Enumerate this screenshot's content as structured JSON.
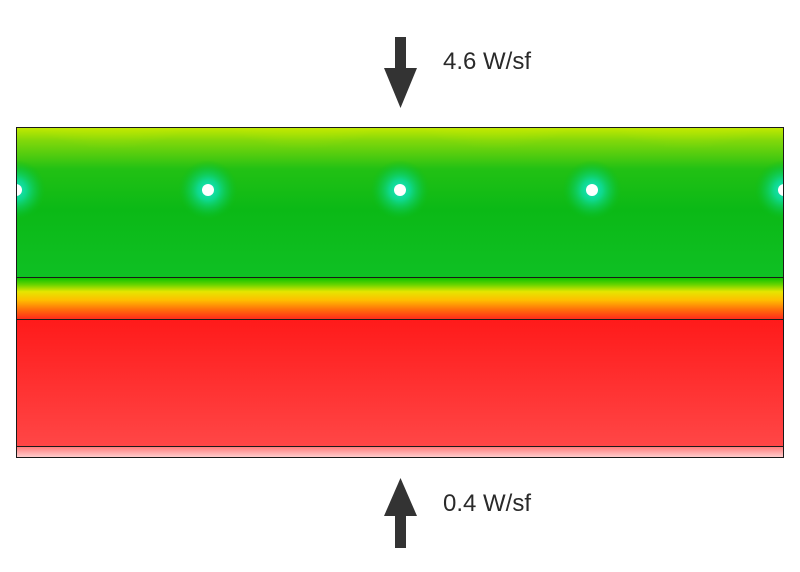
{
  "top_flux": {
    "label": "4.6 W/sf",
    "direction": "down",
    "arrow_icon": "arrow-down-icon"
  },
  "bottom_flux": {
    "label": "0.4 W/sf",
    "direction": "up",
    "arrow_icon": "arrow-up-icon"
  },
  "layers": [
    {
      "name": "slab-with-tubes",
      "colors": [
        "#b7e60a",
        "#0fbf1c",
        "#11bd28"
      ]
    },
    {
      "name": "transition-layer",
      "colors": [
        "#00c000",
        "#ff2a1a"
      ]
    },
    {
      "name": "insulation-layer",
      "colors": [
        "#ff1a1a",
        "#ff4848"
      ]
    },
    {
      "name": "bottom-layer",
      "colors": [
        "#ff6e6e",
        "#ffd0d0"
      ]
    }
  ],
  "tube_count": 5,
  "colors": {
    "arrow": "#333333",
    "outline": "#1a1a1a",
    "tube": "#ffffff",
    "tube_glow": "#19e6c8"
  }
}
